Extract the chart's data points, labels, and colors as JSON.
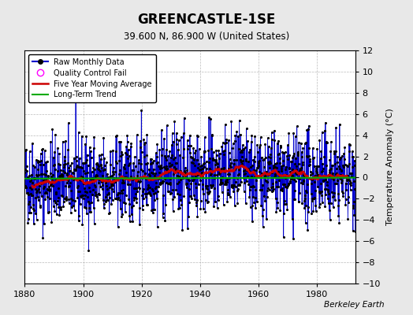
{
  "title": "GREENCASTLE-1SE",
  "subtitle": "39.600 N, 86.900 W (United States)",
  "ylabel": "Temperature Anomaly (°C)",
  "credit": "Berkeley Earth",
  "xlim": [
    1880,
    1993
  ],
  "ylim": [
    -10,
    12
  ],
  "yticks": [
    -10,
    -8,
    -6,
    -4,
    -2,
    0,
    2,
    4,
    6,
    8,
    10,
    12
  ],
  "xticks": [
    1880,
    1900,
    1920,
    1940,
    1960,
    1980
  ],
  "bg_color": "#e8e8e8",
  "plot_bg_color": "#ffffff",
  "raw_color": "#0000cc",
  "moving_avg_color": "#cc0000",
  "trend_color": "#00aa00",
  "qc_color": "#ff00ff",
  "seed": 42,
  "start_year": 1880,
  "end_year": 1993,
  "n_months": 1356
}
